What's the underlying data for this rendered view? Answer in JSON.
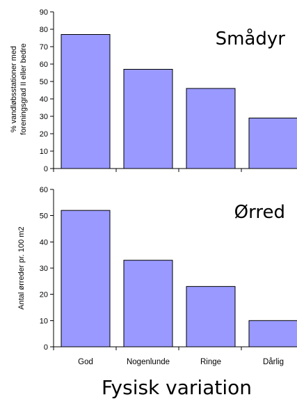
{
  "xlabel": "Fysisk variation",
  "categories": [
    "God",
    "Nogenlunde",
    "Ringe",
    "Dårlig"
  ],
  "colors": {
    "bar": "#9999ff"
  },
  "chart_data": [
    {
      "type": "bar",
      "title": "Smådyr",
      "categories": [
        "God",
        "Nogenlunde",
        "Ringe",
        "Dårlig"
      ],
      "values": [
        77,
        57,
        46,
        29
      ],
      "ylabel_lines": [
        "% vandløbsstationer med",
        "foreningsgrad II eller bedre"
      ],
      "ylim": [
        0,
        90
      ],
      "yticks": [
        0,
        10,
        20,
        30,
        40,
        50,
        60,
        70,
        80,
        90
      ],
      "grid": false,
      "legend": "none"
    },
    {
      "type": "bar",
      "title": "Ørred",
      "categories": [
        "God",
        "Nogenlunde",
        "Ringe",
        "Dårlig"
      ],
      "values": [
        52,
        33,
        23,
        10
      ],
      "ylabel_lines": [
        "Antal ørreder pr. 100 m2"
      ],
      "ylim": [
        0,
        60
      ],
      "yticks": [
        0,
        10,
        20,
        30,
        40,
        50,
        60
      ],
      "xlabel": "Fysisk variation",
      "grid": false,
      "legend": "none"
    }
  ]
}
